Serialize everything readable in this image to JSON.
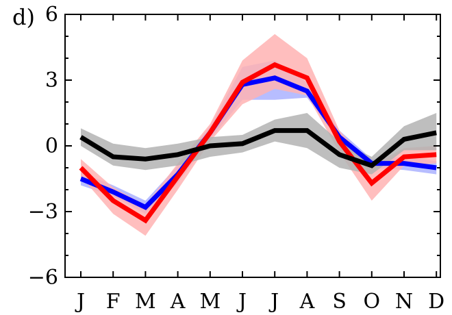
{
  "panel_label": "d)",
  "chart_data": {
    "type": "line",
    "categories": [
      "J",
      "F",
      "M",
      "A",
      "M",
      "J",
      "J",
      "A",
      "S",
      "O",
      "N",
      "D"
    ],
    "ylim": [
      -6,
      6
    ],
    "yticks": [
      -6,
      -3,
      0,
      3,
      6
    ],
    "ytick_labels": [
      "−6",
      "−3",
      "0",
      "3",
      "6"
    ],
    "grid": false,
    "series": [
      {
        "color": "#0000ff",
        "band_color": "#aab2ff",
        "values": [
          -1.5,
          -2.1,
          -2.8,
          -1.3,
          0.6,
          2.8,
          3.1,
          2.5,
          0.4,
          -0.8,
          -0.8,
          -1.0
        ],
        "lower": [
          -1.8,
          -2.3,
          -3.1,
          -1.7,
          0.3,
          2.1,
          2.1,
          2.2,
          0.2,
          -1.0,
          -1.1,
          -1.3
        ],
        "upper": [
          -1.2,
          -1.8,
          -2.5,
          -0.9,
          0.9,
          3.6,
          3.9,
          2.9,
          0.7,
          -0.6,
          -0.5,
          -0.7
        ]
      },
      {
        "color": "#ff0000",
        "band_color": "#ffb3b3",
        "values": [
          -1.0,
          -2.5,
          -3.4,
          -1.4,
          0.6,
          2.9,
          3.7,
          3.1,
          0.2,
          -1.7,
          -0.5,
          -0.4
        ],
        "lower": [
          -1.4,
          -3.1,
          -4.1,
          -2.0,
          0.2,
          1.9,
          2.6,
          2.3,
          -0.3,
          -2.5,
          -0.9,
          -0.8
        ],
        "upper": [
          -0.6,
          -1.9,
          -2.7,
          -0.8,
          1.0,
          3.9,
          5.1,
          4.0,
          0.7,
          -0.9,
          -0.1,
          0.0
        ]
      },
      {
        "color": "#000000",
        "band_color": "#b3b3b3",
        "values": [
          0.4,
          -0.5,
          -0.6,
          -0.4,
          0.0,
          0.1,
          0.7,
          0.7,
          -0.4,
          -0.9,
          0.3,
          0.6
        ],
        "lower": [
          0.0,
          -0.9,
          -1.1,
          -0.9,
          -0.5,
          -0.3,
          0.2,
          -0.1,
          -1.0,
          -1.3,
          -0.2,
          -0.2
        ],
        "upper": [
          0.8,
          0.1,
          -0.1,
          0.1,
          0.4,
          0.5,
          1.2,
          1.5,
          0.2,
          -0.5,
          0.9,
          1.5
        ]
      }
    ]
  }
}
